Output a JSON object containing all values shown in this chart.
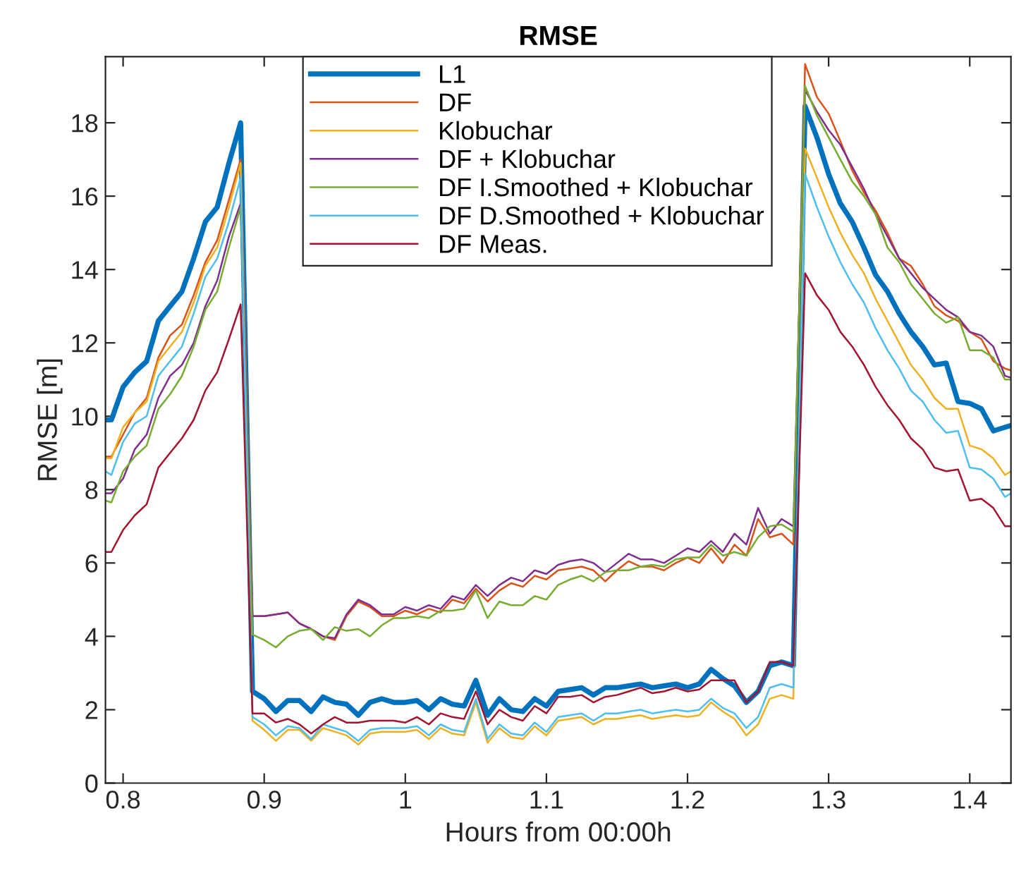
{
  "chart_data": {
    "type": "line",
    "title": "RMSE",
    "xlabel": "Hours from 00:00h",
    "ylabel": "RMSE [m]",
    "x": [
      0.7875,
      0.7917,
      0.8,
      0.8083,
      0.8167,
      0.825,
      0.8333,
      0.8417,
      0.85,
      0.8583,
      0.8667,
      0.875,
      0.8833,
      0.8917,
      0.9,
      0.9083,
      0.9167,
      0.925,
      0.9333,
      0.9417,
      0.95,
      0.9583,
      0.9667,
      0.975,
      0.9833,
      0.9917,
      1.0,
      1.0083,
      1.0167,
      1.025,
      1.0333,
      1.0417,
      1.05,
      1.0583,
      1.0667,
      1.075,
      1.0833,
      1.0917,
      1.1,
      1.1083,
      1.1167,
      1.125,
      1.1333,
      1.1417,
      1.15,
      1.1583,
      1.1667,
      1.175,
      1.1833,
      1.1917,
      1.2,
      1.2083,
      1.2167,
      1.225,
      1.2333,
      1.2417,
      1.25,
      1.2583,
      1.2667,
      1.275,
      1.2833,
      1.2917,
      1.3,
      1.3083,
      1.3167,
      1.325,
      1.3333,
      1.3417,
      1.35,
      1.3583,
      1.3667,
      1.375,
      1.3833,
      1.3917,
      1.4,
      1.4083,
      1.4167,
      1.425,
      1.4292
    ],
    "series": [
      {
        "name": "L1",
        "color": "#0072bd",
        "values": [
          9.9,
          9.9,
          10.8,
          11.2,
          11.5,
          12.6,
          13.0,
          13.4,
          14.3,
          15.3,
          15.7,
          16.9,
          18.0,
          2.5,
          2.3,
          1.95,
          2.25,
          2.25,
          1.95,
          2.35,
          2.2,
          2.15,
          1.85,
          2.2,
          2.3,
          2.2,
          2.2,
          2.25,
          2.0,
          2.3,
          2.15,
          2.1,
          2.8,
          1.85,
          2.3,
          2.0,
          1.95,
          2.3,
          2.1,
          2.5,
          2.55,
          2.6,
          2.4,
          2.6,
          2.6,
          2.65,
          2.7,
          2.6,
          2.65,
          2.7,
          2.6,
          2.7,
          3.1,
          2.85,
          2.65,
          2.2,
          2.5,
          3.2,
          3.3,
          3.2,
          18.45,
          17.6,
          16.6,
          15.8,
          15.3,
          14.6,
          13.85,
          13.4,
          12.8,
          12.3,
          11.9,
          11.4,
          11.45,
          10.4,
          10.35,
          10.2,
          9.6,
          9.7,
          9.75
        ]
      },
      {
        "name": "DF",
        "color": "#d95319",
        "values": [
          8.9,
          8.9,
          9.5,
          10.1,
          10.5,
          11.6,
          12.2,
          12.5,
          13.3,
          14.2,
          14.8,
          15.9,
          17.0,
          4.55,
          4.55,
          4.6,
          4.65,
          4.35,
          4.2,
          4.0,
          3.9,
          4.55,
          4.95,
          4.8,
          4.55,
          4.55,
          4.7,
          4.6,
          4.75,
          4.65,
          5.0,
          4.9,
          5.3,
          4.95,
          5.25,
          5.45,
          5.35,
          5.65,
          5.55,
          5.8,
          5.85,
          5.9,
          5.8,
          5.5,
          5.8,
          6.05,
          5.9,
          5.9,
          5.8,
          6.0,
          6.15,
          6.0,
          6.4,
          6.0,
          6.5,
          6.2,
          7.2,
          6.7,
          6.8,
          6.5,
          19.6,
          18.7,
          18.25,
          17.5,
          16.7,
          16.1,
          15.6,
          15.0,
          14.3,
          14.1,
          13.6,
          13.0,
          12.75,
          12.6,
          12.3,
          12.1,
          11.5,
          11.3,
          11.25
        ]
      },
      {
        "name": "Klobuchar",
        "color": "#edb120",
        "values": [
          8.85,
          8.85,
          9.7,
          10.1,
          10.4,
          11.5,
          11.9,
          12.3,
          13.1,
          14.1,
          14.6,
          15.7,
          16.9,
          1.7,
          1.45,
          1.15,
          1.45,
          1.45,
          1.15,
          1.5,
          1.4,
          1.3,
          1.05,
          1.35,
          1.4,
          1.4,
          1.4,
          1.45,
          1.2,
          1.5,
          1.35,
          1.3,
          2.2,
          1.1,
          1.5,
          1.25,
          1.2,
          1.55,
          1.3,
          1.7,
          1.75,
          1.8,
          1.6,
          1.75,
          1.75,
          1.8,
          1.85,
          1.75,
          1.8,
          1.85,
          1.8,
          1.85,
          2.2,
          1.95,
          1.75,
          1.3,
          1.6,
          2.3,
          2.4,
          2.3,
          17.3,
          16.5,
          15.7,
          15.0,
          14.4,
          13.9,
          13.2,
          12.6,
          12.0,
          11.4,
          11.0,
          10.5,
          10.2,
          10.2,
          9.2,
          9.1,
          8.85,
          8.4,
          8.5
        ]
      },
      {
        "name": "DF + Klobuchar",
        "color": "#7e2f8e",
        "values": [
          7.9,
          7.9,
          8.3,
          9.1,
          9.5,
          10.5,
          11.1,
          11.4,
          12.0,
          13.0,
          13.7,
          14.9,
          15.8,
          4.55,
          4.55,
          4.6,
          4.65,
          4.35,
          4.2,
          4.0,
          3.95,
          4.6,
          5.0,
          4.85,
          4.6,
          4.6,
          4.8,
          4.7,
          4.85,
          4.75,
          5.1,
          5.0,
          5.4,
          5.1,
          5.4,
          5.6,
          5.5,
          5.8,
          5.7,
          5.95,
          6.05,
          6.1,
          6.0,
          5.75,
          6.0,
          6.25,
          6.1,
          6.1,
          6.0,
          6.2,
          6.4,
          6.3,
          6.6,
          6.3,
          6.8,
          6.5,
          7.5,
          6.8,
          7.2,
          7.0,
          18.9,
          18.3,
          17.8,
          17.4,
          16.8,
          16.2,
          15.5,
          14.9,
          14.3,
          13.9,
          13.5,
          13.2,
          12.9,
          12.7,
          12.3,
          12.2,
          11.9,
          11.1,
          11.05
        ]
      },
      {
        "name": "DF I.Smoothed + Klobuchar",
        "color": "#77ac30",
        "values": [
          7.7,
          7.65,
          8.5,
          8.9,
          9.2,
          10.2,
          10.6,
          11.1,
          11.9,
          12.9,
          13.4,
          14.6,
          15.7,
          4.05,
          3.9,
          3.7,
          4.0,
          4.15,
          4.2,
          3.9,
          4.25,
          4.15,
          4.2,
          4.0,
          4.3,
          4.5,
          4.5,
          4.55,
          4.5,
          4.7,
          4.7,
          4.75,
          5.25,
          4.5,
          4.95,
          4.85,
          4.85,
          5.1,
          5.0,
          5.4,
          5.55,
          5.65,
          5.5,
          5.75,
          5.8,
          5.8,
          5.9,
          5.95,
          5.9,
          6.1,
          6.15,
          6.15,
          6.5,
          6.2,
          6.3,
          6.2,
          6.7,
          7.0,
          7.05,
          6.85,
          19.0,
          18.2,
          17.6,
          17.0,
          16.4,
          16.0,
          15.5,
          14.6,
          14.2,
          13.6,
          13.2,
          12.8,
          12.55,
          12.7,
          11.8,
          11.8,
          11.6,
          11.0,
          11.0
        ]
      },
      {
        "name": "DF D.Smoothed + Klobuchar",
        "color": "#4dbeee",
        "values": [
          8.5,
          8.4,
          9.3,
          9.8,
          10.0,
          11.1,
          11.5,
          11.9,
          12.8,
          13.8,
          14.3,
          15.3,
          16.5,
          1.8,
          1.6,
          1.3,
          1.55,
          1.5,
          1.2,
          1.6,
          1.5,
          1.4,
          1.15,
          1.45,
          1.5,
          1.5,
          1.5,
          1.55,
          1.3,
          1.6,
          1.45,
          1.4,
          2.3,
          1.2,
          1.6,
          1.35,
          1.3,
          1.65,
          1.4,
          1.8,
          1.85,
          1.9,
          1.7,
          1.9,
          1.9,
          1.95,
          2.0,
          1.9,
          1.95,
          2.0,
          1.95,
          2.0,
          2.3,
          2.05,
          1.9,
          1.5,
          1.8,
          2.6,
          2.7,
          2.6,
          16.6,
          15.7,
          14.9,
          14.2,
          13.6,
          13.1,
          12.4,
          11.8,
          11.3,
          10.7,
          10.4,
          9.9,
          9.55,
          9.6,
          8.6,
          8.55,
          8.3,
          7.8,
          7.9
        ]
      },
      {
        "name": "DF Meas.",
        "color": "#a2142f",
        "values": [
          6.3,
          6.3,
          6.9,
          7.3,
          7.6,
          8.6,
          9.0,
          9.4,
          9.9,
          10.7,
          11.2,
          12.1,
          13.05,
          1.9,
          1.9,
          1.65,
          1.75,
          1.6,
          1.35,
          1.6,
          1.8,
          1.65,
          1.65,
          1.7,
          1.7,
          1.7,
          1.65,
          1.8,
          1.6,
          1.9,
          1.8,
          1.75,
          2.5,
          1.6,
          2.0,
          1.8,
          1.7,
          2.1,
          1.9,
          2.35,
          2.35,
          2.4,
          2.2,
          2.35,
          2.4,
          2.5,
          2.6,
          2.45,
          2.5,
          2.6,
          2.5,
          2.55,
          2.8,
          2.8,
          2.8,
          2.2,
          2.5,
          3.3,
          3.3,
          3.2,
          13.9,
          13.3,
          12.9,
          12.3,
          11.9,
          11.4,
          10.8,
          10.3,
          9.9,
          9.4,
          9.1,
          8.6,
          8.5,
          8.55,
          7.7,
          7.75,
          7.5,
          7.0,
          7.0
        ]
      }
    ],
    "xlim": [
      0.7875,
      1.4292
    ],
    "xticks": [
      {
        "value": 0.8,
        "label": "0.8"
      },
      {
        "value": 0.9,
        "label": "0.9"
      },
      {
        "value": 1,
        "label": "1"
      },
      {
        "value": 1.1,
        "label": "1.1"
      },
      {
        "value": 1.2,
        "label": "1.2"
      },
      {
        "value": 1.3,
        "label": "1.3"
      },
      {
        "value": 1.4,
        "label": "1.4"
      }
    ],
    "ylim": [
      0,
      19.8
    ],
    "yticks": [
      0,
      2,
      4,
      6,
      8,
      10,
      12,
      14,
      16,
      18
    ],
    "grid": false,
    "legend": "top",
    "marker": "none",
    "line_style": "solid"
  }
}
